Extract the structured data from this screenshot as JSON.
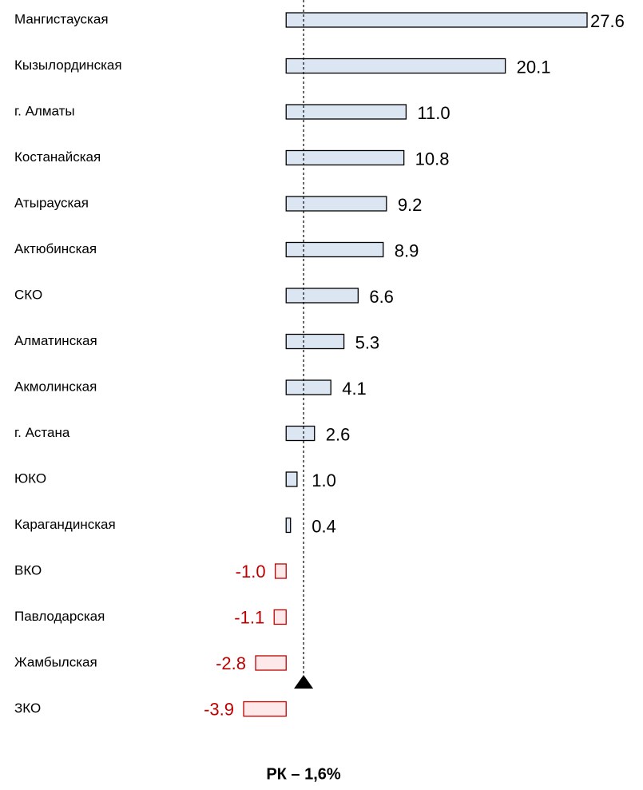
{
  "chart_data": {
    "type": "bar",
    "orientation": "horizontal",
    "categories": [
      "Мангистауская",
      "Кызылординская",
      "г. Алматы",
      "Костанайская",
      "Атырауская",
      "Актюбинская",
      "СКО",
      "Алматинская",
      "Акмолинская",
      "г. Астана",
      "ЮКО",
      "Карагандинская",
      "ВКО",
      "Павлодарская",
      "Жамбылская",
      "ЗКО"
    ],
    "values": [
      27.6,
      20.1,
      11.0,
      10.8,
      9.2,
      8.9,
      6.6,
      5.3,
      4.1,
      2.6,
      1.0,
      0.4,
      -1.0,
      -1.1,
      -2.8,
      -3.9
    ],
    "value_labels": [
      "27.6",
      "20.1",
      "11.0",
      "10.8",
      "9.2",
      "8.9",
      "6.6",
      "5.3",
      "4.1",
      "2.6",
      "1.0",
      "0.4",
      "-1.0",
      "-1.1",
      "-2.8",
      "-3.9"
    ],
    "color": "#dce6f2",
    "negative_color": "#c00000",
    "reference_line": {
      "value": 1.6,
      "label": "РК – 1,6%"
    }
  }
}
